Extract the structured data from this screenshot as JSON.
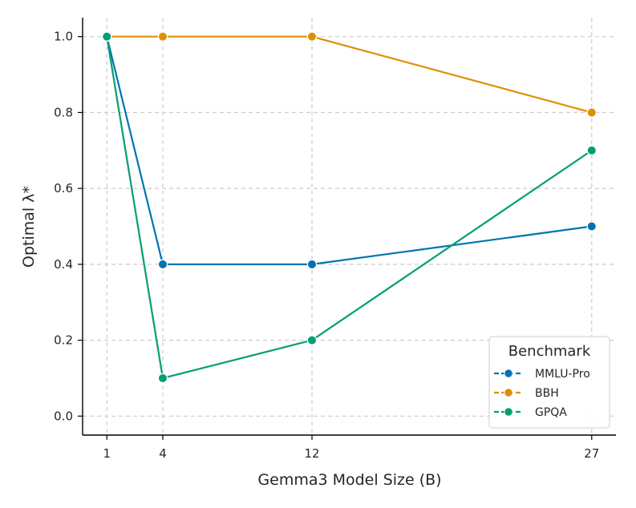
{
  "chart_data": {
    "type": "line",
    "title": "",
    "xlabel": "Gemma3 Model Size (B)",
    "ylabel": "Optimal λ*",
    "x": [
      1,
      4,
      12,
      27
    ],
    "x_ticks": [
      "1",
      "4",
      "12",
      "27"
    ],
    "y_ticks": [
      "0.0",
      "0.2",
      "0.4",
      "0.6",
      "0.8",
      "1.0"
    ],
    "xlim": [
      -0.3,
      28.3
    ],
    "ylim": [
      -0.05,
      1.05
    ],
    "grid": true,
    "legend": {
      "title": "Benchmark",
      "placement": "lower-right"
    },
    "series": [
      {
        "name": "MMLU-Pro",
        "color": "#0173b2",
        "values": [
          1.0,
          0.4,
          0.4,
          0.5
        ]
      },
      {
        "name": "BBH",
        "color": "#de8f05",
        "values": [
          1.0,
          1.0,
          1.0,
          0.8
        ]
      },
      {
        "name": "GPQA",
        "color": "#029e73",
        "values": [
          1.0,
          0.1,
          0.2,
          0.7
        ]
      }
    ]
  }
}
